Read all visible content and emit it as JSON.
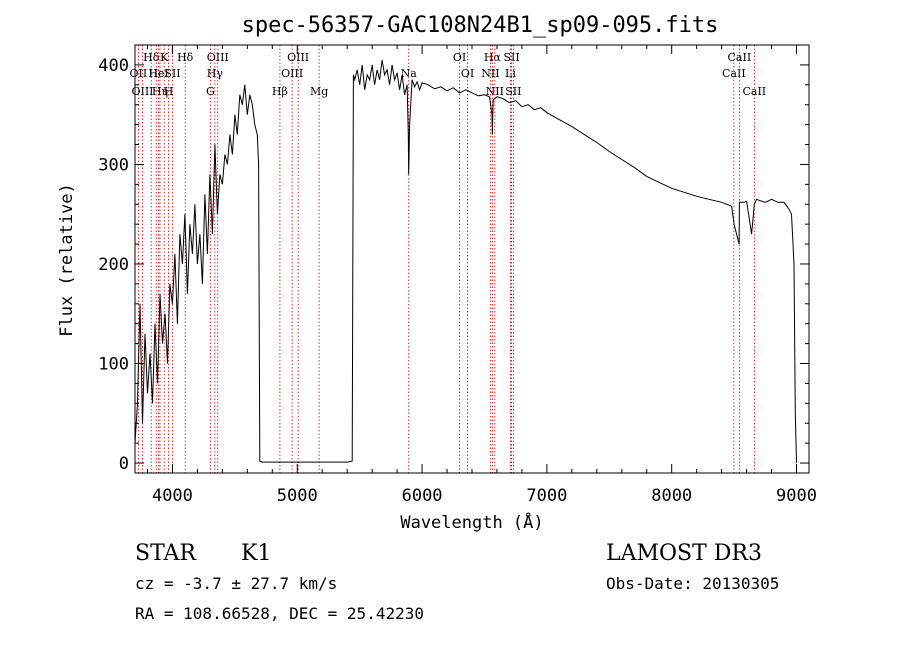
{
  "chart_data": {
    "type": "line",
    "title": "spec-56357-GAC108N24B1_sp09-095.fits",
    "xlabel": "Wavelength (Å)",
    "ylabel": "Flux (relative)",
    "xlim": [
      3700,
      9100
    ],
    "ylim": [
      -10,
      420
    ],
    "x_ticks": [
      4000,
      5000,
      6000,
      7000,
      8000,
      9000
    ],
    "y_ticks": [
      0,
      100,
      200,
      300,
      400
    ],
    "line_color": "#000000",
    "marker_color": "#cc0000",
    "series": [
      {
        "name": "spectrum",
        "x": [
          3700,
          3720,
          3740,
          3760,
          3780,
          3800,
          3820,
          3840,
          3860,
          3880,
          3900,
          3920,
          3940,
          3960,
          3980,
          4000,
          4020,
          4040,
          4060,
          4080,
          4100,
          4120,
          4140,
          4160,
          4180,
          4200,
          4220,
          4240,
          4260,
          4280,
          4300,
          4320,
          4340,
          4360,
          4380,
          4400,
          4420,
          4440,
          4460,
          4480,
          4500,
          4520,
          4540,
          4560,
          4580,
          4600,
          4620,
          4640,
          4660,
          4680,
          4690,
          4700,
          4720,
          5000,
          5200,
          5400,
          5440,
          5450,
          5460,
          5480,
          5500,
          5520,
          5540,
          5560,
          5580,
          5600,
          5620,
          5640,
          5660,
          5680,
          5700,
          5720,
          5740,
          5760,
          5780,
          5800,
          5820,
          5840,
          5860,
          5880,
          5890,
          5893,
          5900,
          5920,
          5940,
          5960,
          5980,
          6000,
          6050,
          6100,
          6150,
          6200,
          6250,
          6300,
          6350,
          6400,
          6450,
          6500,
          6540,
          6560,
          6563,
          6570,
          6600,
          6650,
          6700,
          6750,
          6800,
          6850,
          6900,
          6950,
          7000,
          7100,
          7200,
          7300,
          7400,
          7500,
          7600,
          7700,
          7800,
          7900,
          8000,
          8100,
          8200,
          8300,
          8400,
          8480,
          8500,
          8520,
          8540,
          8542,
          8560,
          8580,
          8600,
          8640,
          8662,
          8680,
          8700,
          8750,
          8800,
          8850,
          8900,
          8940,
          8960,
          8980,
          8990,
          9000
        ],
        "values": [
          20,
          60,
          160,
          40,
          130,
          70,
          110,
          60,
          140,
          80,
          170,
          120,
          150,
          100,
          180,
          160,
          210,
          140,
          230,
          200,
          250,
          170,
          240,
          210,
          260,
          200,
          230,
          180,
          270,
          210,
          290,
          230,
          320,
          250,
          290,
          280,
          310,
          300,
          330,
          310,
          350,
          330,
          370,
          360,
          380,
          350,
          370,
          360,
          340,
          330,
          300,
          2,
          1,
          1,
          1,
          1,
          2,
          390,
          385,
          395,
          380,
          400,
          375,
          390,
          385,
          400,
          380,
          395,
          385,
          405,
          390,
          395,
          380,
          400,
          385,
          392,
          375,
          390,
          370,
          380,
          330,
          290,
          340,
          385,
          378,
          383,
          375,
          382,
          380,
          376,
          378,
          374,
          377,
          372,
          375,
          372,
          369,
          370,
          368,
          350,
          330,
          365,
          368,
          366,
          362,
          364,
          358,
          360,
          355,
          357,
          352,
          345,
          338,
          330,
          322,
          313,
          305,
          297,
          288,
          282,
          276,
          272,
          268,
          265,
          262,
          258,
          240,
          230,
          220,
          262,
          262,
          262,
          263,
          230,
          260,
          265,
          264,
          262,
          265,
          262,
          262,
          255,
          250,
          200,
          50,
          0
        ]
      }
    ],
    "line_markers": [
      {
        "label": "Hδ",
        "x": 3830,
        "row": 1
      },
      {
        "label": "OII",
        "x": 3727,
        "row": 2
      },
      {
        "label": "OIII",
        "x": 3760,
        "row": 3
      },
      {
        "label": "Hε",
        "x": 3870,
        "row": 2
      },
      {
        "label": "HeI",
        "x": 3889,
        "row": 2
      },
      {
        "label": "K",
        "x": 3934,
        "row": 1
      },
      {
        "label": "Hη",
        "x": 3900,
        "row": 3
      },
      {
        "label": "SII",
        "x": 4000,
        "row": 2
      },
      {
        "label": "H",
        "x": 3969,
        "row": 3
      },
      {
        "label": "Hδ",
        "x": 4102,
        "row": 1
      },
      {
        "label": "OIII",
        "x": 4363,
        "row": 1
      },
      {
        "label": "Hγ",
        "x": 4340,
        "row": 2
      },
      {
        "label": "G",
        "x": 4304,
        "row": 3
      },
      {
        "label": "Hβ",
        "x": 4861,
        "row": 3
      },
      {
        "label": "OIII",
        "x": 4959,
        "row": 2
      },
      {
        "label": "OIII",
        "x": 5007,
        "row": 1
      },
      {
        "label": "Mg",
        "x": 5175,
        "row": 3
      },
      {
        "label": "Na",
        "x": 5893,
        "row": 2
      },
      {
        "label": "OI",
        "x": 6300,
        "row": 1
      },
      {
        "label": "OI",
        "x": 6364,
        "row": 2
      },
      {
        "label": "Hα",
        "x": 6563,
        "row": 1
      },
      {
        "label": "NII",
        "x": 6548,
        "row": 2
      },
      {
        "label": "NII",
        "x": 6583,
        "row": 3
      },
      {
        "label": "SII",
        "x": 6717,
        "row": 1
      },
      {
        "label": "Li",
        "x": 6708,
        "row": 2
      },
      {
        "label": "SII",
        "x": 6731,
        "row": 3
      },
      {
        "label": "CaII",
        "x": 8498,
        "row": 2
      },
      {
        "label": "CaII",
        "x": 8542,
        "row": 1
      },
      {
        "label": "CaII",
        "x": 8662,
        "row": 3
      }
    ]
  },
  "info": {
    "class_label": "STAR",
    "subclass": "K1",
    "survey": "LAMOST DR3",
    "redshift": "cz = -3.7 ± 27.7 km/s",
    "obs_date": "Obs-Date: 20130305",
    "coords": "RA = 108.66528, DEC =  25.42230"
  }
}
